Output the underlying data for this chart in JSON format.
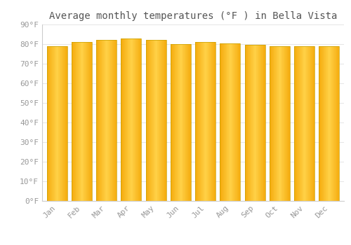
{
  "title": "Average monthly temperatures (°F ) in Bella Vista",
  "months": [
    "Jan",
    "Feb",
    "Mar",
    "Apr",
    "May",
    "Jun",
    "Jul",
    "Aug",
    "Sep",
    "Oct",
    "Nov",
    "Dec"
  ],
  "values": [
    79.0,
    81.0,
    82.0,
    83.0,
    82.0,
    80.0,
    81.0,
    80.5,
    79.5,
    79.0,
    79.0,
    79.0
  ],
  "bar_color_center": "#FFD060",
  "bar_color_edge": "#F5A800",
  "bar_edge_color": "#C8A000",
  "background_color": "#FFFFFF",
  "grid_color": "#E0E0E0",
  "ytick_labels": [
    "0°F",
    "10°F",
    "20°F",
    "30°F",
    "40°F",
    "50°F",
    "60°F",
    "70°F",
    "80°F",
    "90°F"
  ],
  "ytick_values": [
    0,
    10,
    20,
    30,
    40,
    50,
    60,
    70,
    80,
    90
  ],
  "ylim": [
    0,
    90
  ],
  "title_fontsize": 10,
  "tick_fontsize": 8,
  "tick_color": "#999999",
  "title_color": "#555555"
}
